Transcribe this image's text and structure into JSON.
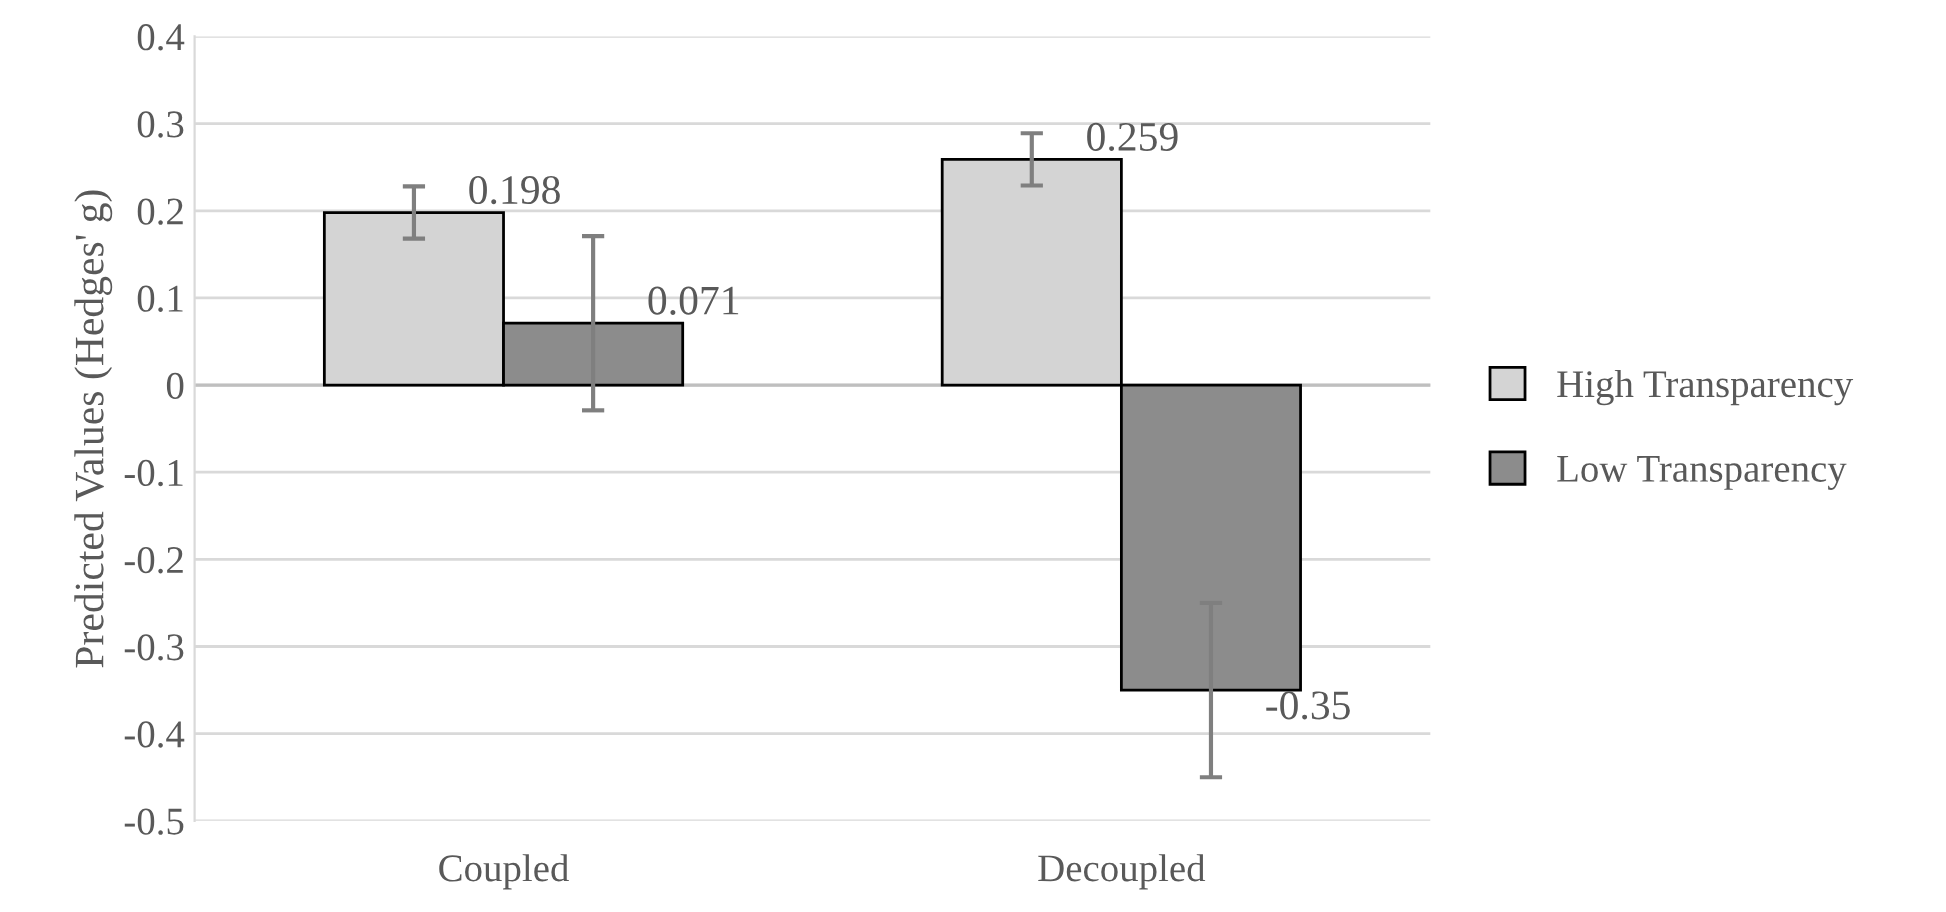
{
  "chart_data": {
    "type": "bar",
    "ylabel": "Predicted Values (Hedges' g)",
    "categories": [
      "Coupled",
      "Decoupled"
    ],
    "series": [
      {
        "name": "High Transparency",
        "color": "#d4d4d4",
        "values": [
          0.198,
          0.259
        ],
        "errors": [
          0.03,
          0.03
        ]
      },
      {
        "name": "Low Transparency",
        "color": "#8c8c8c",
        "values": [
          0.071,
          -0.35
        ],
        "errors": [
          0.1,
          0.1
        ]
      }
    ],
    "ylim": [
      -0.5,
      0.4
    ],
    "yticks": [
      -0.5,
      -0.4,
      -0.3,
      -0.2,
      -0.1,
      0,
      0.1,
      0.2,
      0.3,
      0.4
    ],
    "grid": "y",
    "legend": "right",
    "data_labels": true
  }
}
